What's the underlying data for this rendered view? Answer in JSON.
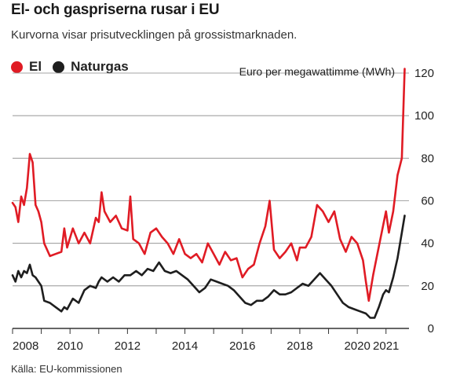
{
  "header": {
    "title": "El- och gaspriserna rusar i EU",
    "subtitle": "Kurvorna visar prisutvecklingen på grossistmarknaden."
  },
  "source": "Källa: EU-kommissionen",
  "colors": {
    "el": "#e01b24",
    "gas": "#1e1e1e",
    "grid": "#888888",
    "axis": "#333333"
  },
  "chart_data": {
    "type": "line",
    "ylabel": "Euro per megawattimme (MWh)",
    "ylim": [
      0,
      120
    ],
    "y_ticks": [
      0,
      20,
      40,
      60,
      80,
      100,
      120
    ],
    "xlim": [
      2008,
      2021.8
    ],
    "x_ticks": [
      "2008",
      "2010",
      "2012",
      "2014",
      "2016",
      "2018",
      "2020",
      "2021"
    ],
    "x_tick_values": [
      2008,
      2010,
      2012,
      2014,
      2016,
      2018,
      2020,
      2021
    ],
    "legend_position": "top-left",
    "grid": true,
    "series": [
      {
        "name": "El",
        "color": "#e01b24",
        "points": [
          [
            2008.0,
            59
          ],
          [
            2008.1,
            57
          ],
          [
            2008.2,
            50
          ],
          [
            2008.3,
            62
          ],
          [
            2008.4,
            58
          ],
          [
            2008.5,
            66
          ],
          [
            2008.6,
            82
          ],
          [
            2008.7,
            78
          ],
          [
            2008.8,
            58
          ],
          [
            2008.9,
            55
          ],
          [
            2009.0,
            50
          ],
          [
            2009.1,
            40
          ],
          [
            2009.3,
            34
          ],
          [
            2009.5,
            35
          ],
          [
            2009.7,
            36
          ],
          [
            2009.8,
            47
          ],
          [
            2009.9,
            38
          ],
          [
            2010.1,
            47
          ],
          [
            2010.3,
            40
          ],
          [
            2010.5,
            45
          ],
          [
            2010.7,
            40
          ],
          [
            2010.9,
            52
          ],
          [
            2011.0,
            50
          ],
          [
            2011.1,
            64
          ],
          [
            2011.2,
            55
          ],
          [
            2011.4,
            50
          ],
          [
            2011.6,
            53
          ],
          [
            2011.8,
            47
          ],
          [
            2012.0,
            46
          ],
          [
            2012.1,
            62
          ],
          [
            2012.2,
            42
          ],
          [
            2012.4,
            40
          ],
          [
            2012.6,
            35
          ],
          [
            2012.8,
            45
          ],
          [
            2013.0,
            47
          ],
          [
            2013.2,
            43
          ],
          [
            2013.4,
            40
          ],
          [
            2013.6,
            35
          ],
          [
            2013.8,
            42
          ],
          [
            2014.0,
            35
          ],
          [
            2014.2,
            33
          ],
          [
            2014.4,
            35
          ],
          [
            2014.6,
            31
          ],
          [
            2014.8,
            40
          ],
          [
            2015.0,
            35
          ],
          [
            2015.2,
            30
          ],
          [
            2015.4,
            36
          ],
          [
            2015.6,
            32
          ],
          [
            2015.8,
            33
          ],
          [
            2016.0,
            24
          ],
          [
            2016.2,
            28
          ],
          [
            2016.4,
            30
          ],
          [
            2016.6,
            40
          ],
          [
            2016.8,
            48
          ],
          [
            2016.95,
            60
          ],
          [
            2017.1,
            37
          ],
          [
            2017.3,
            33
          ],
          [
            2017.5,
            36
          ],
          [
            2017.7,
            40
          ],
          [
            2017.9,
            32
          ],
          [
            2018.0,
            38
          ],
          [
            2018.2,
            38
          ],
          [
            2018.4,
            43
          ],
          [
            2018.6,
            58
          ],
          [
            2018.8,
            55
          ],
          [
            2019.0,
            50
          ],
          [
            2019.2,
            55
          ],
          [
            2019.4,
            42
          ],
          [
            2019.6,
            36
          ],
          [
            2019.8,
            43
          ],
          [
            2020.0,
            40
          ],
          [
            2020.2,
            32
          ],
          [
            2020.3,
            22
          ],
          [
            2020.4,
            13
          ],
          [
            2020.55,
            25
          ],
          [
            2020.7,
            35
          ],
          [
            2020.85,
            45
          ],
          [
            2021.0,
            55
          ],
          [
            2021.1,
            45
          ],
          [
            2021.25,
            55
          ],
          [
            2021.4,
            72
          ],
          [
            2021.55,
            80
          ],
          [
            2021.65,
            122
          ]
        ]
      },
      {
        "name": "Naturgas",
        "color": "#1e1e1e",
        "points": [
          [
            2008.0,
            25
          ],
          [
            2008.1,
            22
          ],
          [
            2008.2,
            27
          ],
          [
            2008.3,
            24
          ],
          [
            2008.4,
            27
          ],
          [
            2008.5,
            26
          ],
          [
            2008.6,
            30
          ],
          [
            2008.7,
            25
          ],
          [
            2008.8,
            24
          ],
          [
            2008.9,
            22
          ],
          [
            2009.0,
            20
          ],
          [
            2009.1,
            13
          ],
          [
            2009.3,
            12
          ],
          [
            2009.5,
            10
          ],
          [
            2009.7,
            8
          ],
          [
            2009.8,
            10
          ],
          [
            2009.9,
            9
          ],
          [
            2010.1,
            14
          ],
          [
            2010.3,
            12
          ],
          [
            2010.5,
            18
          ],
          [
            2010.7,
            20
          ],
          [
            2010.9,
            19
          ],
          [
            2011.0,
            22
          ],
          [
            2011.1,
            24
          ],
          [
            2011.3,
            22
          ],
          [
            2011.5,
            24
          ],
          [
            2011.7,
            22
          ],
          [
            2011.9,
            25
          ],
          [
            2012.1,
            25
          ],
          [
            2012.3,
            27
          ],
          [
            2012.5,
            25
          ],
          [
            2012.7,
            28
          ],
          [
            2012.9,
            27
          ],
          [
            2013.1,
            31
          ],
          [
            2013.3,
            27
          ],
          [
            2013.5,
            26
          ],
          [
            2013.7,
            27
          ],
          [
            2013.9,
            25
          ],
          [
            2014.1,
            23
          ],
          [
            2014.3,
            20
          ],
          [
            2014.5,
            17
          ],
          [
            2014.7,
            19
          ],
          [
            2014.9,
            23
          ],
          [
            2015.1,
            22
          ],
          [
            2015.3,
            21
          ],
          [
            2015.5,
            20
          ],
          [
            2015.7,
            18
          ],
          [
            2015.9,
            15
          ],
          [
            2016.1,
            12
          ],
          [
            2016.3,
            11
          ],
          [
            2016.5,
            13
          ],
          [
            2016.7,
            13
          ],
          [
            2016.9,
            15
          ],
          [
            2017.1,
            18
          ],
          [
            2017.3,
            16
          ],
          [
            2017.5,
            16
          ],
          [
            2017.7,
            17
          ],
          [
            2017.9,
            19
          ],
          [
            2018.1,
            21
          ],
          [
            2018.3,
            20
          ],
          [
            2018.5,
            23
          ],
          [
            2018.7,
            26
          ],
          [
            2018.9,
            23
          ],
          [
            2019.1,
            20
          ],
          [
            2019.3,
            16
          ],
          [
            2019.5,
            12
          ],
          [
            2019.7,
            10
          ],
          [
            2019.9,
            9
          ],
          [
            2020.1,
            8
          ],
          [
            2020.3,
            7
          ],
          [
            2020.45,
            5
          ],
          [
            2020.6,
            5
          ],
          [
            2020.75,
            10
          ],
          [
            2020.9,
            16
          ],
          [
            2021.0,
            18
          ],
          [
            2021.1,
            17
          ],
          [
            2021.25,
            24
          ],
          [
            2021.4,
            33
          ],
          [
            2021.55,
            45
          ],
          [
            2021.65,
            53
          ]
        ]
      }
    ]
  }
}
